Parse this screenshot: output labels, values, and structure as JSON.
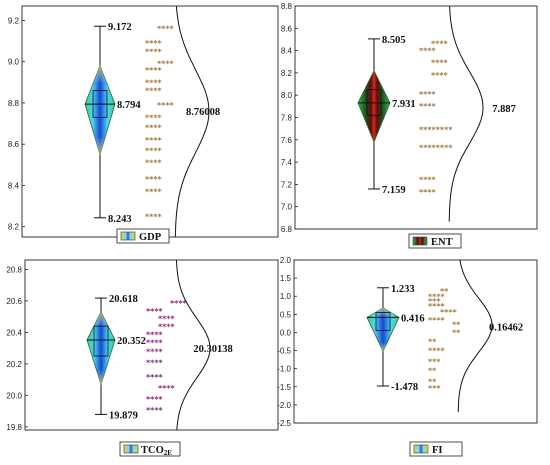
{
  "chart_data": [
    {
      "type": "violin",
      "series_name": "GDP",
      "yticks": [
        "8.2",
        "8.4",
        "8.6",
        "8.8",
        "9.0",
        "9.2"
      ],
      "ylim": [
        8.15,
        9.27
      ],
      "max": 9.172,
      "min": 8.243,
      "median": 8.794,
      "mean": 8.76008,
      "max_label": "9.172",
      "min_label": "8.243",
      "median_label": "8.794",
      "mean_label": "8.76008",
      "q1": 8.73,
      "q3": 8.86,
      "diamond_top": 8.98,
      "diamond_bottom": 8.55,
      "star_color": "#a0783c",
      "star_values": [
        9.17,
        9.1,
        9.06,
        9.0,
        8.97,
        8.91,
        8.87,
        8.8,
        8.74,
        8.69,
        8.63,
        8.58,
        8.52,
        8.44,
        8.38,
        8.26
      ],
      "star_counts": [
        4,
        4,
        4,
        4,
        4,
        4,
        4,
        4,
        4,
        4,
        4,
        4,
        4,
        4,
        4,
        4
      ],
      "star_offsets": [
        1,
        0,
        0,
        1,
        0,
        0,
        0,
        1,
        0,
        0,
        0,
        0,
        0,
        0,
        0,
        0
      ],
      "legend_swatch": [
        "#1e5fc8",
        "#79d5f0"
      ],
      "bell_center": 8.76,
      "bell_sigma": 0.2
    },
    {
      "type": "violin",
      "series_name": "ENT",
      "yticks": [
        "6.8",
        "7.0",
        "7.2",
        "7.4",
        "7.6",
        "7.8",
        "8.0",
        "8.2",
        "8.4",
        "8.6",
        "8.8"
      ],
      "ylim": [
        6.8,
        8.8
      ],
      "max": 8.505,
      "min": 7.159,
      "median": 7.931,
      "mean": 7.887,
      "max_label": "8.505",
      "min_label": "7.159",
      "median_label": "7.931",
      "mean_label": "7.887",
      "q1": 7.82,
      "q3": 8.05,
      "diamond_top": 8.22,
      "diamond_bottom": 7.58,
      "star_color": "#a0783c",
      "star_values": [
        8.48,
        8.42,
        8.31,
        8.2,
        8.03,
        7.92,
        7.71,
        7.55,
        7.26,
        7.15
      ],
      "star_counts": [
        4,
        4,
        4,
        4,
        4,
        4,
        8,
        8,
        4,
        4
      ],
      "star_offsets": [
        1,
        0,
        1,
        1,
        0,
        0,
        0,
        0,
        0,
        0
      ],
      "legend_swatch": [
        "#4a0c0c",
        "#c8271e"
      ],
      "bell_center": 7.89,
      "bell_sigma": 0.32
    },
    {
      "type": "violin",
      "series_name": "TCO2E",
      "series_label_main": "TCO",
      "series_label_sub": "2E",
      "yticks": [
        "19.8",
        "20.0",
        "20.2",
        "20.4",
        "20.6",
        "20.8"
      ],
      "ylim": [
        19.78,
        20.86
      ],
      "max": 20.618,
      "min": 19.879,
      "median": 20.352,
      "mean": 20.30138,
      "max_label": "20.618",
      "min_label": "19.879",
      "median_label": "20.352",
      "mean_label": "20.30138",
      "q1": 20.25,
      "q3": 20.44,
      "diamond_top": 20.53,
      "diamond_bottom": 20.07,
      "star_color": "#8a2a78",
      "star_values": [
        20.6,
        20.55,
        20.5,
        20.45,
        20.4,
        20.35,
        20.29,
        20.22,
        20.13,
        20.06,
        19.99,
        19.92
      ],
      "star_counts": [
        4,
        4,
        4,
        4,
        4,
        4,
        4,
        4,
        4,
        4,
        4,
        4
      ],
      "star_offsets": [
        2,
        0,
        1,
        1,
        0,
        0,
        0,
        0,
        0,
        1,
        0,
        0
      ],
      "legend_swatch": [
        "#1e5fc8",
        "#79d5f0"
      ],
      "bell_center": 20.3,
      "bell_sigma": 0.19
    },
    {
      "type": "violin",
      "series_name": "FI",
      "yticks": [
        "-2.5",
        "-2.0",
        "-1.5",
        "-1.0",
        "-0.5",
        "0.0",
        "0.5",
        "1.0",
        "1.5",
        "2.0"
      ],
      "ylim": [
        -2.5,
        2.0
      ],
      "max": 1.233,
      "min": -1.478,
      "median": 0.416,
      "mean": 0.16462,
      "max_label": "1.233",
      "min_label": "-1.478",
      "median_label": "0.416",
      "mean_label": "0.16462",
      "q1": 0.05,
      "q3": 0.55,
      "diamond_top": 0.68,
      "diamond_bottom": -0.52,
      "star_color": "#a0783c",
      "star_values": [
        1.2,
        1.05,
        0.92,
        0.78,
        0.62,
        0.4,
        0.28,
        0.05,
        -0.2,
        -0.45,
        -0.75,
        -1.0,
        -1.3,
        -1.48
      ],
      "star_counts": [
        2,
        4,
        3,
        4,
        4,
        4,
        2,
        2,
        2,
        4,
        3,
        2,
        2,
        3
      ],
      "star_offsets": [
        1,
        0,
        0,
        0,
        1,
        0,
        2,
        2,
        0,
        0,
        0,
        0,
        0,
        0
      ],
      "legend_swatch": [
        "#1e5fc8",
        "#79d5f0"
      ],
      "bell_center": 0.2,
      "bell_sigma": 0.75
    }
  ]
}
